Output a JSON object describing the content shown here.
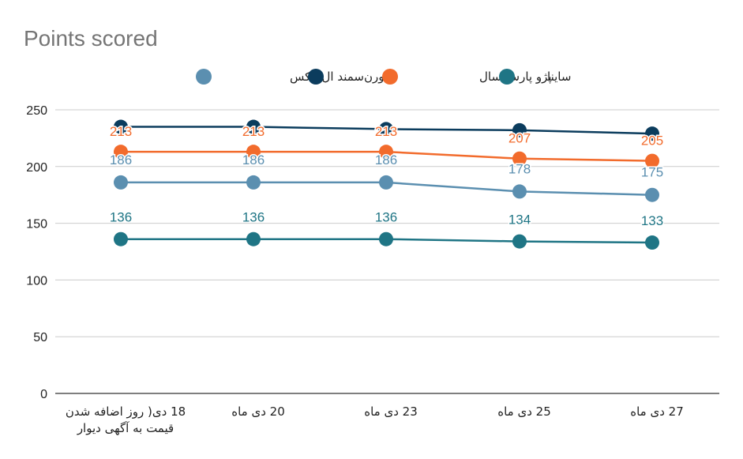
{
  "chart_data": {
    "type": "line",
    "title": "Points scored",
    "categories": [
      [
        "18 دی( روز اضافه شدن",
        "قیمت به آگهی دیوار"
      ],
      [
        "20 دی ماه"
      ],
      [
        "23 دی ماه"
      ],
      [
        "25 دی ماه"
      ],
      [
        "27 دی ماه"
      ]
    ],
    "ylim": [
      0,
      250
    ],
    "yticks": [
      0,
      50,
      100,
      150,
      200,
      250
    ],
    "grid": true,
    "legend_position": "top",
    "series": [
      {
        "name": "سمند ال ایکس",
        "color": "#5b8fb0",
        "values": [
          186,
          186,
          186,
          178,
          175
        ]
      },
      {
        "name": "سورن",
        "color": "#0b3c5d",
        "values": [
          235,
          235,
          233,
          232,
          229
        ]
      },
      {
        "name": "پژو پارس سال",
        "color": "#f26b2c",
        "values": [
          213,
          213,
          213,
          207,
          205
        ]
      },
      {
        "name": "ساینا",
        "color": "#1f7585",
        "values": [
          136,
          136,
          136,
          134,
          133
        ]
      }
    ],
    "data_labels": [
      {
        "series": "سمند ال ایکس",
        "values": [
          186,
          186,
          186,
          178,
          175
        ]
      },
      {
        "series": "پژو پارس سال",
        "values": [
          213,
          213,
          213,
          207,
          205
        ]
      },
      {
        "series": "ساینا",
        "values": [
          136,
          136,
          136,
          134,
          133
        ]
      }
    ]
  }
}
